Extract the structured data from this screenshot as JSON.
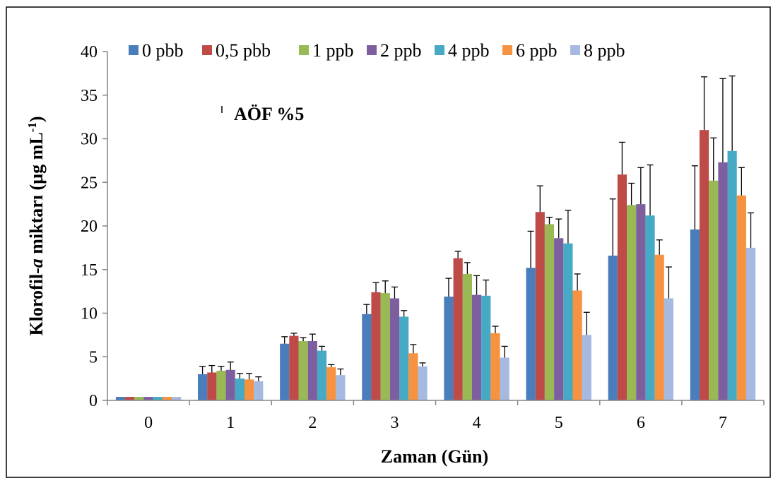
{
  "chart_data": {
    "type": "bar",
    "categories": [
      "0",
      "1",
      "2",
      "3",
      "4",
      "5",
      "6",
      "7"
    ],
    "series": [
      {
        "name": "0 pbb",
        "color": "#4A7DBB",
        "values": [
          0.4,
          3.0,
          6.5,
          9.9,
          11.9,
          15.2,
          16.6,
          19.6
        ],
        "errors": [
          0,
          0.9,
          0.8,
          1.1,
          2.1,
          4.2,
          6.5,
          7.3
        ]
      },
      {
        "name": "0,5 pbb",
        "color": "#BE4B48",
        "values": [
          0.4,
          3.2,
          7.4,
          12.4,
          16.3,
          21.6,
          25.9,
          31.0
        ],
        "errors": [
          0,
          0.8,
          0.3,
          1.1,
          0.8,
          3.0,
          3.7,
          6.1
        ]
      },
      {
        "name": "1 ppb",
        "color": "#98B954",
        "values": [
          0.4,
          3.4,
          6.8,
          12.3,
          14.5,
          20.2,
          22.4,
          25.2
        ],
        "errors": [
          0,
          0.5,
          0.4,
          1.4,
          1.3,
          0.8,
          2.5,
          4.9
        ]
      },
      {
        "name": "2 ppb",
        "color": "#7D5FA0",
        "values": [
          0.4,
          3.5,
          6.8,
          11.7,
          12.1,
          18.6,
          22.5,
          27.3
        ],
        "errors": [
          0,
          0.9,
          0.8,
          1.3,
          2.2,
          2.2,
          4.2,
          9.6
        ]
      },
      {
        "name": "4 ppb",
        "color": "#46AAC5",
        "values": [
          0.4,
          2.5,
          5.7,
          9.6,
          12.0,
          18.0,
          21.2,
          28.6
        ],
        "errors": [
          0,
          0.6,
          0.5,
          0.7,
          1.8,
          3.8,
          5.8,
          8.6
        ]
      },
      {
        "name": "6 ppb",
        "color": "#F69240",
        "values": [
          0.4,
          2.4,
          3.8,
          5.4,
          7.7,
          12.6,
          16.7,
          23.5
        ],
        "errors": [
          0,
          0.7,
          0.3,
          1.0,
          0.8,
          1.9,
          1.7,
          3.2
        ]
      },
      {
        "name": "8 ppb",
        "color": "#A6B9E0",
        "values": [
          0.4,
          2.2,
          2.9,
          3.9,
          4.9,
          7.5,
          11.7,
          17.5
        ],
        "errors": [
          0,
          0.5,
          0.7,
          0.4,
          1.3,
          2.6,
          3.6,
          4.0
        ]
      }
    ],
    "ylim": [
      0,
      40
    ],
    "yticks": [
      0,
      5,
      10,
      15,
      20,
      25,
      30,
      35,
      40
    ],
    "xlabel": "Zaman (Gün)",
    "ylabel_parts": [
      "Klorofil-",
      "a",
      " miktarı (µg mL",
      "-1",
      ")"
    ],
    "annotation": "AÖF %5",
    "legend_position": "top",
    "grid": false,
    "error_bars": "upper-only"
  }
}
